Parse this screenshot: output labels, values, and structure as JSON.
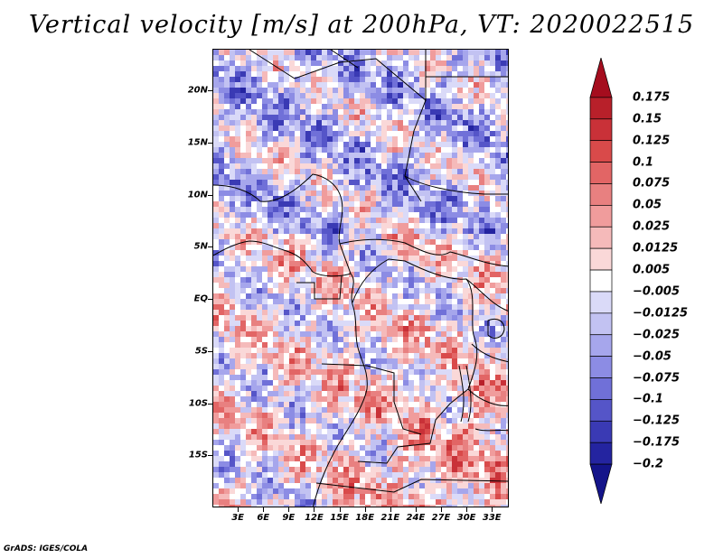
{
  "title": "Vertical velocity [m/s] at 200hPa, VT: 2020022515",
  "credit": "GrADS: IGES/COLA",
  "map": {
    "lon_range": [
      0,
      35
    ],
    "lat_range": [
      -20,
      24
    ],
    "lat_labels": [
      {
        "text": "20N",
        "lat": 20
      },
      {
        "text": "15N",
        "lat": 15
      },
      {
        "text": "10N",
        "lat": 10
      },
      {
        "text": "5N",
        "lat": 5
      },
      {
        "text": "EQ",
        "lat": 0
      },
      {
        "text": "5S",
        "lat": -5
      },
      {
        "text": "10S",
        "lat": -10
      },
      {
        "text": "15S",
        "lat": -15
      }
    ],
    "lon_labels": [
      {
        "text": "3E",
        "lon": 3
      },
      {
        "text": "6E",
        "lon": 6
      },
      {
        "text": "9E",
        "lon": 9
      },
      {
        "text": "12E",
        "lon": 12
      },
      {
        "text": "15E",
        "lon": 15
      },
      {
        "text": "18E",
        "lon": 18
      },
      {
        "text": "21E",
        "lon": 21
      },
      {
        "text": "24E",
        "lon": 24
      },
      {
        "text": "27E",
        "lon": 27
      },
      {
        "text": "30E",
        "lon": 30
      },
      {
        "text": "33E",
        "lon": 33
      }
    ]
  },
  "colorbar": {
    "labels": [
      "0.175",
      "0.15",
      "0.125",
      "0.1",
      "0.075",
      "0.05",
      "0.025",
      "0.0125",
      "0.005",
      "−0.005",
      "−0.0125",
      "−0.025",
      "−0.05",
      "−0.075",
      "−0.1",
      "−0.125",
      "−0.175",
      "−0.2"
    ],
    "colors": [
      "#a50d1e",
      "#b8202a",
      "#c93138",
      "#d94a4a",
      "#e26565",
      "#e88080",
      "#f09c9c",
      "#f5baba",
      "#fad8d8",
      "#ffffff",
      "#dadaf8",
      "#c2c2f2",
      "#a6a6ec",
      "#8c8ce4",
      "#7070d8",
      "#5555c8",
      "#3a3ab4",
      "#2424a0",
      "#14148a"
    ]
  }
}
